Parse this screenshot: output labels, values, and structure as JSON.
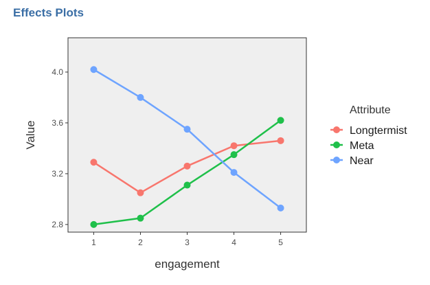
{
  "header": {
    "title": "Effects Plots"
  },
  "chart_data": {
    "type": "line",
    "x": [
      1,
      2,
      3,
      4,
      5
    ],
    "xlabel": "engagement",
    "ylabel": "Value",
    "x_ticks": [
      "1",
      "2",
      "3",
      "4",
      "5"
    ],
    "y_ticks": [
      "2.8",
      "3.2",
      "3.6",
      "4.0"
    ],
    "xlim": [
      0.45,
      5.55
    ],
    "ylim": [
      2.74,
      4.27
    ],
    "grid": false,
    "legend": {
      "title": "Attribute",
      "placement": "right"
    },
    "series": [
      {
        "name": "Longtermist",
        "color": "#f8766d",
        "values": [
          3.29,
          3.05,
          3.26,
          3.42,
          3.46
        ]
      },
      {
        "name": "Meta",
        "color": "#1fc04a",
        "values": [
          2.8,
          2.85,
          3.11,
          3.35,
          3.62
        ]
      },
      {
        "name": "Near",
        "color": "#6ea4ff",
        "values": [
          4.02,
          3.8,
          3.55,
          3.21,
          2.93
        ]
      }
    ]
  }
}
